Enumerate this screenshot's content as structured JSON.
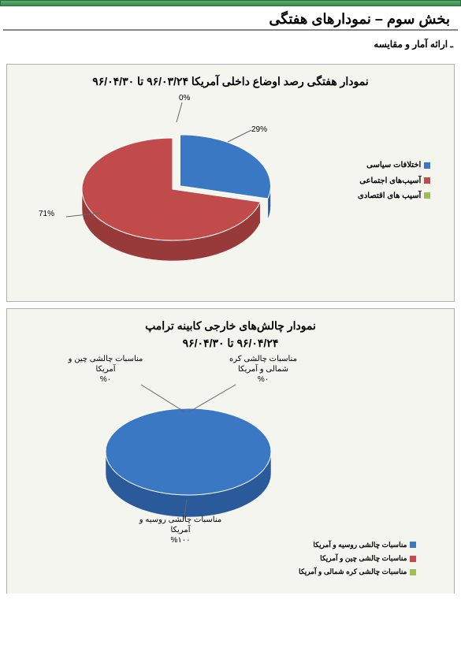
{
  "header": {
    "page_title": "بخش سوم – نمودارهای هفتگی",
    "subtitle": "ـ ارائه آمار و مقایسه"
  },
  "chart1": {
    "type": "pie",
    "title": "نمودار هفتگی رصد اوضاع داخلی آمریکا   ۹۶/۰۳/۲۴   تا   ۹۶/۰۴/۳۰",
    "background_color": "#f5f5f0",
    "slices": [
      {
        "label": "اختلافات سیاسی",
        "value": 29,
        "pct_label": "29%",
        "color": "#3b78c4",
        "color_dark": "#2a5a99"
      },
      {
        "label": "آسیب‌های اجتماعی",
        "value": 71,
        "pct_label": "71%",
        "color": "#c14b4b",
        "color_dark": "#993a3a"
      },
      {
        "label": "آسیب های اقتصادی",
        "value": 0,
        "pct_label": "0%",
        "color": "#9fbe5a",
        "color_dark": "#7a9544"
      }
    ],
    "legend_fontsize": 10
  },
  "chart2": {
    "type": "pie",
    "title_line1": "نمودار چالش‌های خارجی کابینه ترامپ",
    "title_line2": "۹۶/۰۴/۲۴   تا   ۹۶/۰۴/۳۰",
    "background_color": "#f5f5f0",
    "slices": [
      {
        "label": "مناسبات چالشی روسیه و آمریکا",
        "value": 100,
        "pct_label": "%۱۰۰",
        "caption": "مناسبات چالشی روسیه و\nآمریکا",
        "color": "#3b78c4",
        "color_dark": "#2a5a99"
      },
      {
        "label": "مناسبات چالشی چین و آمریکا",
        "value": 0,
        "pct_label": "%۰",
        "caption": "مناسبات چالشی چین و\nآمریکا",
        "color": "#c14b4b",
        "color_dark": "#993a3a"
      },
      {
        "label": "مناسبات چالشی کره شمالی و آمریکا",
        "value": 0,
        "pct_label": "%۰",
        "caption": "مناسبات چالشی کره\nشمالی و آمریکا",
        "color": "#9fbe5a",
        "color_dark": "#7a9544"
      }
    ],
    "legend_fontsize": 9
  }
}
